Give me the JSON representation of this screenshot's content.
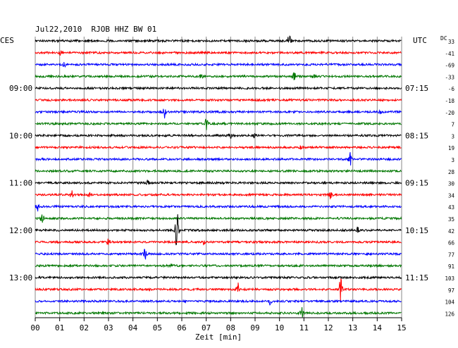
{
  "chart_data": {
    "type": "line",
    "title": "Jul22,2010  RJOB HHZ BW 01",
    "left_axis_label": "CES",
    "right_axis_label": "UTC",
    "right_column_label": "DC",
    "xlabel": "Zeit [min]",
    "x_ticks": [
      "00",
      "01",
      "02",
      "03",
      "04",
      "05",
      "06",
      "07",
      "08",
      "09",
      "10",
      "11",
      "12",
      "13",
      "14",
      "15"
    ],
    "xlim": [
      0,
      15
    ],
    "grid": true,
    "trace_colors": [
      "#000000",
      "#ff0000",
      "#0000ff",
      "#007700"
    ],
    "time_labels_left": [
      {
        "row": 4,
        "label": "09:00"
      },
      {
        "row": 8,
        "label": "10:00"
      },
      {
        "row": 12,
        "label": "11:00"
      },
      {
        "row": 16,
        "label": "12:00"
      },
      {
        "row": 20,
        "label": "13:00"
      }
    ],
    "time_labels_right": [
      {
        "row": 4,
        "label": "07:15"
      },
      {
        "row": 8,
        "label": "08:15"
      },
      {
        "row": 12,
        "label": "09:15"
      },
      {
        "row": 16,
        "label": "10:15"
      },
      {
        "row": 20,
        "label": "11:15"
      }
    ],
    "dc_offsets": [
      "33",
      "-41",
      "-69",
      "-33",
      "-6",
      "-18",
      "-20",
      "7",
      "3",
      "19",
      "3",
      "28",
      "30",
      "34",
      "43",
      "35",
      "42",
      "66",
      "77",
      "91",
      "103",
      "97",
      "104",
      "126"
    ],
    "traces": [
      {
        "row": 0,
        "events": [
          {
            "minute": 10.4,
            "amplitude": 9
          }
        ]
      },
      {
        "row": 1,
        "events": [
          {
            "minute": 1.0,
            "amplitude": 4
          }
        ]
      },
      {
        "row": 2,
        "events": [
          {
            "minute": 1.2,
            "amplitude": 3
          }
        ]
      },
      {
        "row": 3,
        "events": [
          {
            "minute": 6.8,
            "amplitude": 3
          },
          {
            "minute": 10.6,
            "amplitude": 6
          },
          {
            "minute": 11.4,
            "amplitude": 3
          }
        ]
      },
      {
        "row": 4,
        "events": []
      },
      {
        "row": 5,
        "events": []
      },
      {
        "row": 6,
        "events": [
          {
            "minute": 5.3,
            "amplitude": 9
          },
          {
            "minute": 14.1,
            "amplitude": 3
          }
        ]
      },
      {
        "row": 7,
        "events": [
          {
            "minute": 7.0,
            "amplitude": 8
          }
        ]
      },
      {
        "row": 8,
        "events": [
          {
            "minute": 8.0,
            "amplitude": 3
          },
          {
            "minute": 9.0,
            "amplitude": 4
          }
        ]
      },
      {
        "row": 9,
        "events": [
          {
            "minute": 10.9,
            "amplitude": 3
          }
        ]
      },
      {
        "row": 10,
        "events": [
          {
            "minute": 12.9,
            "amplitude": 9
          }
        ]
      },
      {
        "row": 11,
        "events": []
      },
      {
        "row": 12,
        "events": [
          {
            "minute": 4.6,
            "amplitude": 3
          }
        ]
      },
      {
        "row": 13,
        "events": [
          {
            "minute": 1.5,
            "amplitude": 6
          },
          {
            "minute": 2.2,
            "amplitude": 4
          },
          {
            "minute": 12.1,
            "amplitude": 6
          }
        ]
      },
      {
        "row": 14,
        "events": [
          {
            "minute": 0.1,
            "amplitude": 6
          }
        ]
      },
      {
        "row": 15,
        "events": [
          {
            "minute": 0.3,
            "amplitude": 8
          }
        ]
      },
      {
        "row": 16,
        "events": [
          {
            "minute": 5.8,
            "amplitude": 28
          },
          {
            "minute": 13.2,
            "amplitude": 4
          }
        ]
      },
      {
        "row": 17,
        "events": [
          {
            "minute": 3.0,
            "amplitude": 4
          },
          {
            "minute": 6.9,
            "amplitude": 3
          }
        ]
      },
      {
        "row": 18,
        "events": [
          {
            "minute": 4.5,
            "amplitude": 7
          }
        ]
      },
      {
        "row": 19,
        "events": [
          {
            "minute": 5.6,
            "amplitude": 3
          }
        ]
      },
      {
        "row": 20,
        "events": []
      },
      {
        "row": 21,
        "events": [
          {
            "minute": 8.3,
            "amplitude": 9
          },
          {
            "minute": 12.5,
            "amplitude": 16
          }
        ]
      },
      {
        "row": 22,
        "events": [
          {
            "minute": 9.6,
            "amplitude": 5
          }
        ]
      },
      {
        "row": 23,
        "events": [
          {
            "minute": 10.9,
            "amplitude": 8
          }
        ]
      }
    ]
  }
}
